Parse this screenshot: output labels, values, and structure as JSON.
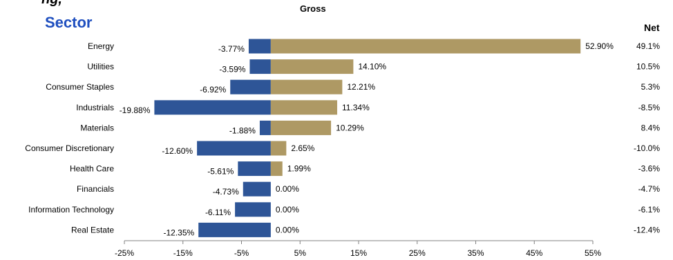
{
  "header": {
    "partial_title": "ng,",
    "sector_heading": "Sector",
    "gross_heading": "Gross",
    "net_heading": "Net"
  },
  "colors": {
    "short": "#2e5597",
    "long": "#ae9964",
    "sector_heading": "#1f4fbf",
    "axis": "#808080"
  },
  "chart_data": {
    "type": "bar",
    "orientation": "horizontal",
    "categories": [
      "Energy",
      "Utilities",
      "Consumer Staples",
      "Industrials",
      "Materials",
      "Consumer Discretionary",
      "Health Care",
      "Financials",
      "Information Technology",
      "Real Estate"
    ],
    "series": [
      {
        "values": [
          -3.77,
          -3.59,
          -6.92,
          -19.88,
          -1.88,
          -12.6,
          -5.61,
          -4.73,
          -6.11,
          -12.35
        ],
        "labels": [
          "-3.77%",
          "-3.59%",
          "-6.92%",
          "-19.88%",
          "-1.88%",
          "-12.60%",
          "-5.61%",
          "-4.73%",
          "-6.11%",
          "-12.35%"
        ]
      },
      {
        "values": [
          52.9,
          14.1,
          12.21,
          11.34,
          10.29,
          2.65,
          1.99,
          0.0,
          0.0,
          0.0
        ],
        "labels": [
          "52.90%",
          "14.10%",
          "12.21%",
          "11.34%",
          "10.29%",
          "2.65%",
          "1.99%",
          "0.00%",
          "0.00%",
          "0.00%"
        ]
      }
    ],
    "net": [
      49.1,
      10.5,
      5.3,
      -8.5,
      8.4,
      -10.0,
      -3.6,
      -4.7,
      -6.1,
      -12.4
    ],
    "net_labels": [
      "49.1%",
      "10.5%",
      "5.3%",
      "-8.5%",
      "8.4%",
      "-10.0%",
      "-3.6%",
      "-4.7%",
      "-6.1%",
      "-12.4%"
    ],
    "xlim": [
      -25,
      55
    ],
    "xticks": [
      -25,
      -15,
      -5,
      5,
      15,
      25,
      35,
      45,
      55
    ],
    "xtick_labels": [
      "-25%",
      "-15%",
      "-5%",
      "5%",
      "15%",
      "25%",
      "35%",
      "45%",
      "55%"
    ],
    "grid": false,
    "legend": false
  }
}
